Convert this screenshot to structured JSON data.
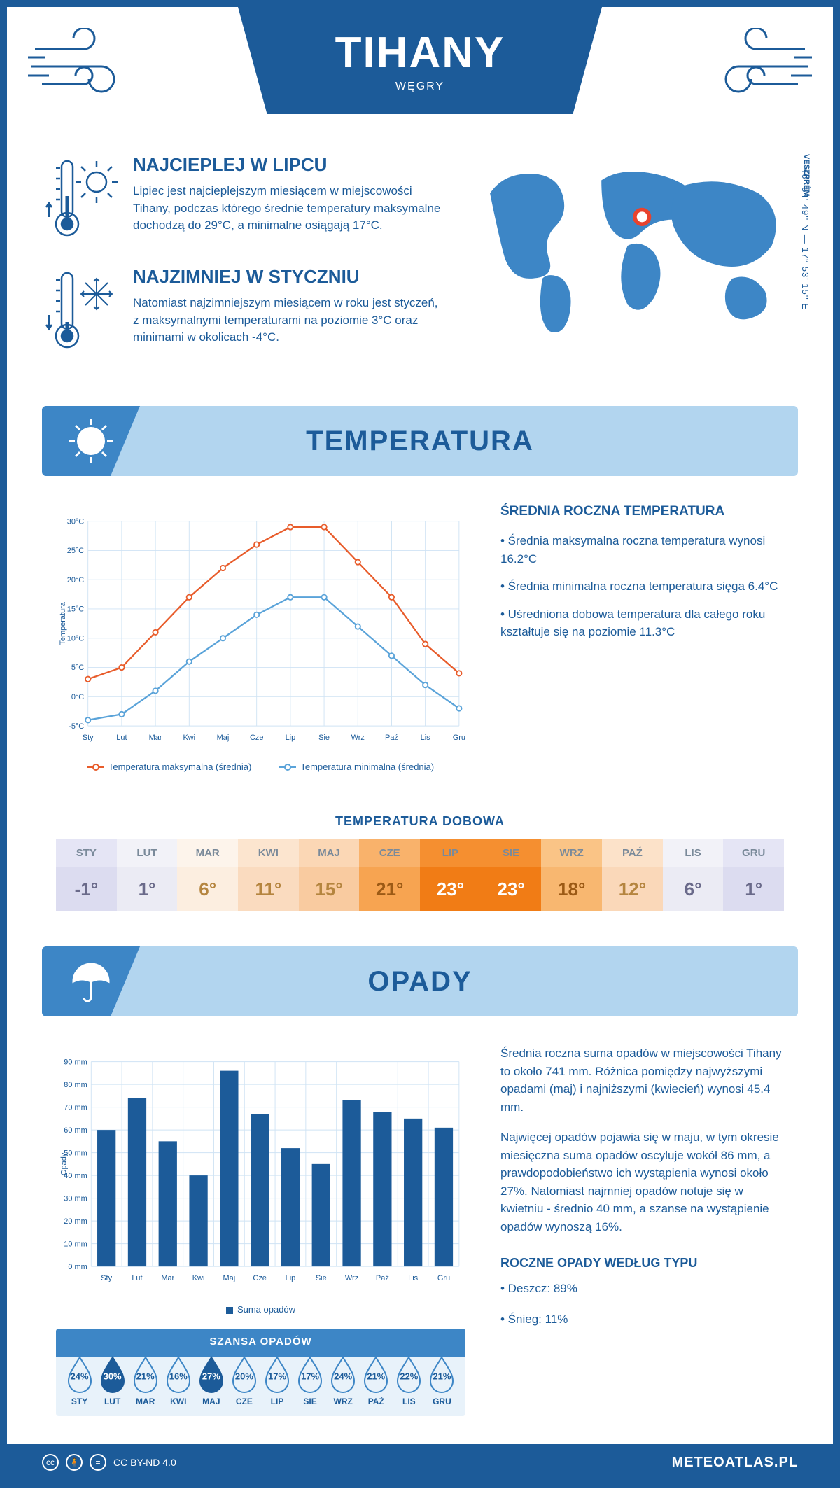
{
  "header": {
    "title": "TIHANY",
    "subtitle": "WĘGRY"
  },
  "coords": "46° 54' 49'' N — 17° 53' 15'' E",
  "region": "VESZPRÉM",
  "facts": {
    "hot": {
      "title": "NAJCIEPLEJ W LIPCU",
      "text": "Lipiec jest najcieplejszym miesiącem w miejscowości Tihany, podczas którego średnie temperatury maksymalne dochodzą do 29°C, a minimalne osiągają 17°C."
    },
    "cold": {
      "title": "NAJZIMNIEJ W STYCZNIU",
      "text": "Natomiast najzimniejszym miesiącem w roku jest styczeń, z maksymalnymi temperaturami na poziomie 3°C oraz minimami w okolicach -4°C."
    }
  },
  "sections": {
    "temperature": "TEMPERATURA",
    "precip": "OPADY"
  },
  "temp_chart": {
    "type": "line",
    "months": [
      "Sty",
      "Lut",
      "Mar",
      "Kwi",
      "Maj",
      "Cze",
      "Lip",
      "Sie",
      "Wrz",
      "Paź",
      "Lis",
      "Gru"
    ],
    "max_series": [
      3,
      5,
      11,
      17,
      22,
      26,
      29,
      29,
      23,
      17,
      9,
      4
    ],
    "min_series": [
      -4,
      -3,
      1,
      6,
      10,
      14,
      17,
      17,
      12,
      7,
      2,
      -2
    ],
    "max_color": "#e85c2b",
    "min_color": "#5aa3d9",
    "ylim": [
      -5,
      30
    ],
    "ytick_step": 5,
    "ylabel": "Temperatura",
    "grid_color": "#cfe3f4",
    "legend_max": "Temperatura maksymalna (średnia)",
    "legend_min": "Temperatura minimalna (średnia)"
  },
  "temp_side": {
    "heading": "ŚREDNIA ROCZNA TEMPERATURA",
    "bullets": [
      "• Średnia maksymalna roczna temperatura wynosi 16.2°C",
      "• Średnia minimalna roczna temperatura sięga 6.4°C",
      "• Uśredniona dobowa temperatura dla całego roku kształtuje się na poziomie 11.3°C"
    ]
  },
  "daily_temp": {
    "title": "TEMPERATURA DOBOWA",
    "months": [
      "STY",
      "LUT",
      "MAR",
      "KWI",
      "MAJ",
      "CZE",
      "LIP",
      "SIE",
      "WRZ",
      "PAŹ",
      "LIS",
      "GRU"
    ],
    "values": [
      "-1°",
      "1°",
      "6°",
      "11°",
      "15°",
      "21°",
      "23°",
      "23°",
      "18°",
      "12°",
      "6°",
      "1°"
    ],
    "header_colors": [
      "#e5e5f5",
      "#f2f2f8",
      "#fdf4eb",
      "#fce5cf",
      "#fbd7b5",
      "#f9b26b",
      "#f58f30",
      "#f58f30",
      "#fac486",
      "#fce2c9",
      "#f2f2f8",
      "#e5e5f5"
    ],
    "value_colors": [
      "#dcdcf0",
      "#ebebf4",
      "#fceee0",
      "#fadbbf",
      "#f9cba0",
      "#f7a451",
      "#f17c15",
      "#f17c15",
      "#f8b770",
      "#fad8b9",
      "#ebebf4",
      "#dcdcf0"
    ],
    "text_colors": [
      "#6a6a8a",
      "#6a6a8a",
      "#b5853f",
      "#b5853f",
      "#b5853f",
      "#9c5a15",
      "#ffffff",
      "#ffffff",
      "#9c5a15",
      "#b5853f",
      "#6a6a8a",
      "#6a6a8a"
    ]
  },
  "precip_chart": {
    "type": "bar",
    "months": [
      "Sty",
      "Lut",
      "Mar",
      "Kwi",
      "Maj",
      "Cze",
      "Lip",
      "Sie",
      "Wrz",
      "Paź",
      "Lis",
      "Gru"
    ],
    "values": [
      60,
      74,
      55,
      40,
      86,
      67,
      52,
      45,
      73,
      68,
      65,
      61
    ],
    "bar_color": "#1c5b99",
    "ylim": [
      0,
      90
    ],
    "ytick_step": 10,
    "ylabel": "Opady",
    "grid_color": "#cfe3f4",
    "legend": "Suma opadów"
  },
  "precip_side": {
    "para1": "Średnia roczna suma opadów w miejscowości Tihany to około 741 mm. Różnica pomiędzy najwyższymi opadami (maj) i najniższymi (kwiecień) wynosi 45.4 mm.",
    "para2": "Najwięcej opadów pojawia się w maju, w tym okresie miesięczna suma opadów oscyluje wokół 86 mm, a prawdopodobieństwo ich wystąpienia wynosi około 27%. Natomiast najmniej opadów notuje się w kwietniu - średnio 40 mm, a szanse na wystąpienie opadów wynoszą 16%.",
    "type_heading": "ROCZNE OPADY WEDŁUG TYPU",
    "type_rain": "• Deszcz: 89%",
    "type_snow": "• Śnieg: 11%"
  },
  "chance": {
    "title": "SZANSA OPADÓW",
    "months": [
      "STY",
      "LUT",
      "MAR",
      "KWI",
      "MAJ",
      "CZE",
      "LIP",
      "SIE",
      "WRZ",
      "PAŹ",
      "LIS",
      "GRU"
    ],
    "values": [
      24,
      30,
      21,
      16,
      27,
      20,
      17,
      17,
      24,
      21,
      22,
      21
    ],
    "fill_color": "#1c5b99",
    "outline_color": "#3d86c6",
    "highlight_threshold": 27
  },
  "footer": {
    "license": "CC BY-ND 4.0",
    "site": "METEOATLAS.PL"
  }
}
